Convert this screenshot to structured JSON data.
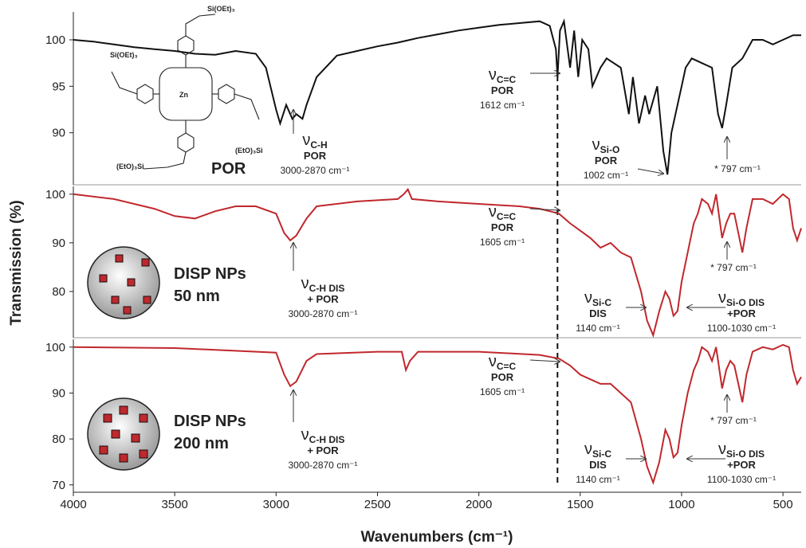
{
  "chart_data": [
    {
      "type": "line",
      "y_label": "Transmission (%)",
      "panel_label": [
        "POR"
      ],
      "structure_labels": [
        "Si(OEt)₃",
        "Zn",
        "Si(OEt)₃",
        "(EtO)₃Si",
        "(EtO)₃Si"
      ],
      "xlim": [
        4000,
        410
      ],
      "ylim": [
        84.4,
        103
      ],
      "yticks": [
        90,
        95,
        100
      ],
      "marker_x": 1612,
      "series": [
        {
          "color": "#111111",
          "x": [
            4000,
            3900,
            3800,
            3700,
            3600,
            3500,
            3400,
            3300,
            3200,
            3100,
            3050,
            3000,
            2980,
            2950,
            2920,
            2900,
            2870,
            2850,
            2800,
            2700,
            2600,
            2500,
            2400,
            2300,
            2200,
            2100,
            2000,
            1900,
            1800,
            1700,
            1650,
            1620,
            1612,
            1600,
            1580,
            1550,
            1530,
            1510,
            1490,
            1460,
            1440,
            1400,
            1370,
            1300,
            1260,
            1240,
            1210,
            1180,
            1160,
            1120,
            1090,
            1070,
            1050,
            1030,
            1000,
            980,
            950,
            900,
            850,
            820,
            800,
            780,
            750,
            700,
            650,
            600,
            550,
            500,
            450,
            410
          ],
          "values": [
            100,
            99.8,
            99.5,
            99.2,
            99,
            98.8,
            98.5,
            98.4,
            98.8,
            98.5,
            97,
            92.5,
            91,
            93,
            91.5,
            92,
            91.5,
            93,
            96,
            98.3,
            98.8,
            99.3,
            99.7,
            100.2,
            100.6,
            101,
            101.3,
            101.6,
            101.8,
            102,
            101.5,
            99,
            96,
            101,
            102,
            97,
            101,
            96,
            100,
            99,
            95,
            97,
            98,
            97,
            92,
            96,
            91,
            94,
            92,
            95,
            88,
            85.5,
            90,
            92,
            95,
            97,
            98,
            97.5,
            97,
            92,
            90.5,
            93,
            97,
            98,
            100,
            100,
            99.5,
            100,
            100.5,
            100.5
          ]
        }
      ],
      "annotations": [
        {
          "symbol": "ν",
          "sub": "C-H",
          "lines": [
            "POR",
            "3000-2870 cm⁻¹"
          ]
        },
        {
          "symbol": "ν",
          "sub": "C=C",
          "lines": [
            "POR",
            "1612 cm⁻¹"
          ]
        },
        {
          "symbol": "ν",
          "sub": "Si-O",
          "lines": [
            "POR",
            "1002 cm⁻¹"
          ]
        },
        {
          "lines": [
            "* 797 cm⁻¹"
          ]
        }
      ]
    },
    {
      "type": "line",
      "panel_label": [
        "DISP NPs",
        "50 nm"
      ],
      "xlim": [
        4000,
        410
      ],
      "ylim": [
        70.5,
        101.6
      ],
      "yticks": [
        80,
        90,
        100
      ],
      "series": [
        {
          "color": "#c0282d",
          "x": [
            4000,
            3800,
            3600,
            3500,
            3400,
            3300,
            3200,
            3100,
            3000,
            2960,
            2930,
            2900,
            2850,
            2800,
            2600,
            2400,
            2370,
            2350,
            2330,
            2200,
            2000,
            1800,
            1700,
            1650,
            1605,
            1550,
            1500,
            1450,
            1400,
            1350,
            1300,
            1250,
            1200,
            1170,
            1140,
            1110,
            1080,
            1060,
            1040,
            1020,
            1000,
            970,
            940,
            920,
            900,
            870,
            850,
            830,
            800,
            780,
            760,
            740,
            700,
            680,
            650,
            600,
            550,
            500,
            470,
            450,
            430,
            410
          ],
          "values": [
            100,
            99,
            97,
            95.5,
            95,
            96.5,
            97.5,
            97.5,
            96,
            92,
            90.5,
            91.5,
            95,
            97.5,
            98.5,
            99,
            100,
            101,
            99,
            98.5,
            98,
            97.5,
            97,
            96.5,
            96,
            94,
            92.5,
            91,
            89,
            90,
            88,
            87,
            80,
            74,
            71,
            76,
            80,
            78.5,
            75,
            76,
            82,
            88,
            94,
            96,
            99,
            98,
            96,
            100,
            91,
            94,
            96,
            96,
            88,
            93,
            99,
            99,
            98,
            100,
            99,
            93,
            90.5,
            93
          ]
        }
      ],
      "annotations": [
        {
          "symbol": "ν",
          "sub": "C-H DIS",
          "lines": [
            "+ POR",
            "3000-2870 cm⁻¹"
          ]
        },
        {
          "symbol": "ν",
          "sub": "C=C",
          "lines": [
            "POR",
            "1605 cm⁻¹"
          ]
        },
        {
          "symbol": "ν",
          "sub": "Si-C",
          "lines": [
            "DIS",
            "1140 cm⁻¹"
          ]
        },
        {
          "symbol": "ν",
          "sub": "Si-O DIS",
          "lines": [
            "+POR",
            "1100-1030 cm⁻¹"
          ]
        },
        {
          "lines": [
            "* 797 cm⁻¹"
          ]
        }
      ]
    },
    {
      "type": "line",
      "panel_label": [
        "DISP NPs",
        "200 nm"
      ],
      "x_label": "Wavenumbers (cm⁻¹)",
      "xlim": [
        4000,
        410
      ],
      "ylim": [
        68.4,
        101.7
      ],
      "yticks": [
        70,
        80,
        90,
        100
      ],
      "xticks": [
        4000,
        3500,
        3000,
        2500,
        2000,
        1500,
        1000,
        500
      ],
      "series": [
        {
          "color": "#c0282d",
          "x": [
            4000,
            3500,
            3000,
            2960,
            2930,
            2900,
            2850,
            2800,
            2500,
            2380,
            2360,
            2340,
            2300,
            2000,
            1700,
            1605,
            1550,
            1500,
            1450,
            1400,
            1350,
            1300,
            1250,
            1200,
            1170,
            1140,
            1110,
            1080,
            1060,
            1040,
            1020,
            1000,
            970,
            940,
            920,
            900,
            870,
            850,
            830,
            800,
            780,
            760,
            740,
            700,
            680,
            650,
            600,
            550,
            500,
            470,
            450,
            430,
            410
          ],
          "values": [
            100,
            99.8,
            98.8,
            94,
            91.5,
            92.5,
            97,
            98.5,
            99,
            99,
            95,
            97,
            99,
            99,
            98.3,
            97.5,
            96,
            94,
            93,
            92,
            92,
            90,
            88,
            80,
            74,
            70.5,
            75,
            82,
            80,
            76,
            77,
            83,
            90,
            95,
            97,
            100,
            99,
            97,
            100,
            91,
            95,
            97,
            96,
            88,
            94,
            99,
            100,
            99.5,
            100.5,
            100,
            95,
            92,
            93.5
          ]
        }
      ],
      "annotations": [
        {
          "symbol": "ν",
          "sub": "C-H DIS",
          "lines": [
            "+ POR",
            "3000-2870 cm⁻¹"
          ]
        },
        {
          "symbol": "ν",
          "sub": "C=C",
          "lines": [
            "POR",
            "1605 cm⁻¹"
          ]
        },
        {
          "symbol": "ν",
          "sub": "Si-C",
          "lines": [
            "DIS",
            "1140 cm⁻¹"
          ]
        },
        {
          "symbol": "ν",
          "sub": "Si-O DIS",
          "lines": [
            "+POR",
            "1100-1030 cm⁻¹"
          ]
        },
        {
          "lines": [
            "* 797 cm⁻¹"
          ]
        }
      ]
    }
  ]
}
